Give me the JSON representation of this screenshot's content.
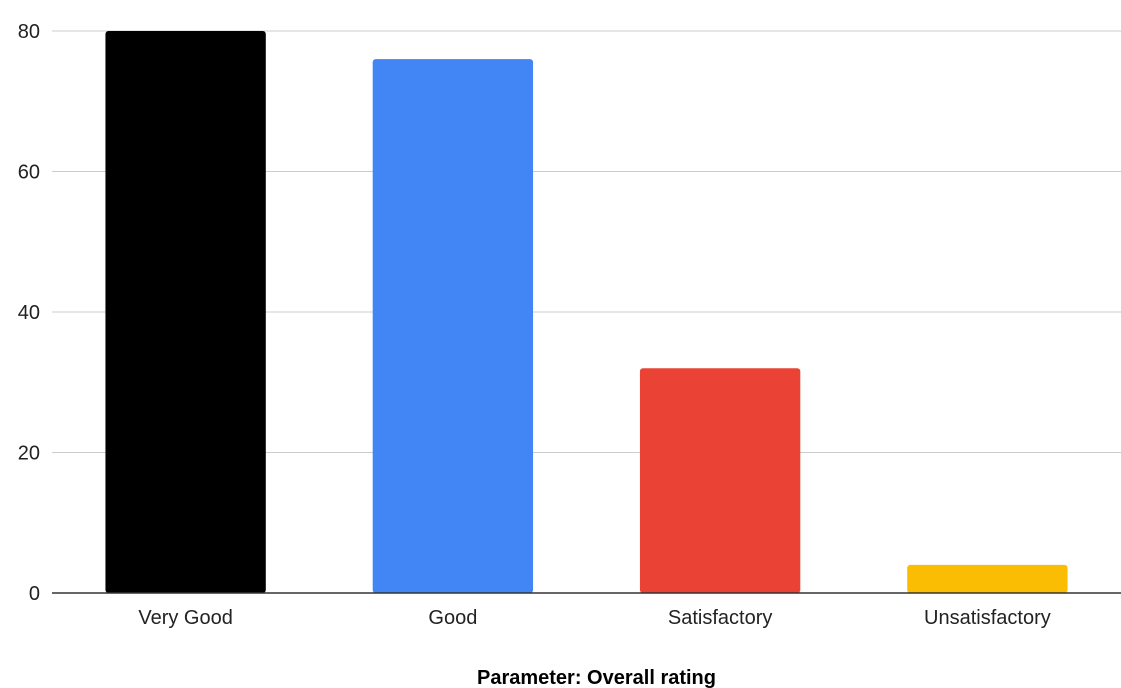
{
  "chart_data": {
    "type": "bar",
    "title": "",
    "xlabel": "Parameter: Overall rating",
    "ylabel": "",
    "categories": [
      "Very Good",
      "Good",
      "Satisfactory",
      "Unsatisfactory"
    ],
    "values": [
      80,
      76,
      32,
      4
    ],
    "colors": [
      "#000000",
      "#4285f4",
      "#ea4335",
      "#fbbc04"
    ],
    "ylim": [
      0,
      80
    ],
    "yticks": [
      0,
      20,
      40,
      60,
      80
    ],
    "grid": true,
    "legend": "none"
  }
}
